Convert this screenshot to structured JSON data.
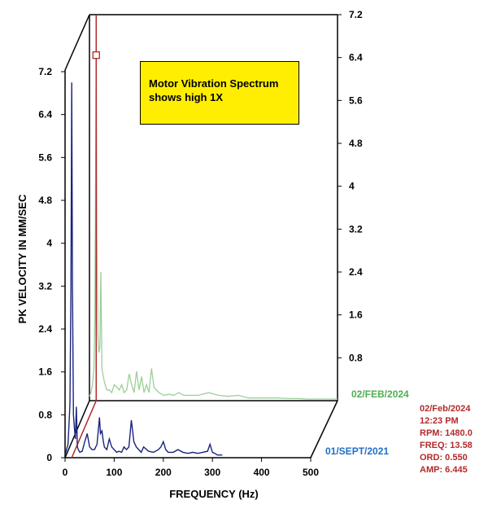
{
  "chart_data": {
    "type": "line",
    "subtype": "waterfall-spectrum",
    "title": "",
    "xlabel": "FREQUENCY (Hz)",
    "ylabel": "PK VELOCITY IN MM/SEC",
    "x_ticks": [
      "0",
      "100",
      "200",
      "300",
      "400",
      "500"
    ],
    "y_ticks_left": [
      "0",
      "0.8",
      "1.6",
      "2.4",
      "3.2",
      "4",
      "4.8",
      "5.6",
      "6.4",
      "7.2"
    ],
    "y_ticks_right": [
      "0.8",
      "1.6",
      "2.4",
      "3.2",
      "4",
      "4.8",
      "5.6",
      "6.4",
      "7.2"
    ],
    "xlim": [
      0,
      500
    ],
    "ylim": [
      0,
      7.2
    ],
    "grid": false,
    "annotation": "Motor Vibration Spectrum\nshows high 1X",
    "series": [
      {
        "name": "01/SEPT/2021",
        "color": "#1a237e",
        "x": [
          0,
          3,
          6,
          8,
          10,
          12,
          13.6,
          15,
          17,
          19,
          21,
          23,
          25,
          27,
          30,
          35,
          40,
          45,
          50,
          55,
          60,
          65,
          68,
          70,
          72,
          75,
          78,
          80,
          85,
          90,
          95,
          100,
          105,
          110,
          115,
          120,
          125,
          130,
          135,
          140,
          145,
          150,
          155,
          160,
          170,
          180,
          190,
          195,
          200,
          205,
          210,
          220,
          230,
          240,
          250,
          260,
          270,
          280,
          290,
          295,
          300,
          305,
          310,
          320
        ],
        "values": [
          0.05,
          0.15,
          0.25,
          0.6,
          1.0,
          3.1,
          7.0,
          3.2,
          0.8,
          0.55,
          0.35,
          0.95,
          0.2,
          0.15,
          0.1,
          0.12,
          0.3,
          0.45,
          0.2,
          0.15,
          0.15,
          0.25,
          0.55,
          0.75,
          0.45,
          0.5,
          0.3,
          0.2,
          0.15,
          0.35,
          0.2,
          0.15,
          0.1,
          0.12,
          0.1,
          0.2,
          0.15,
          0.2,
          0.7,
          0.3,
          0.2,
          0.15,
          0.1,
          0.2,
          0.12,
          0.1,
          0.15,
          0.2,
          0.3,
          0.15,
          0.1,
          0.1,
          0.15,
          0.1,
          0.08,
          0.1,
          0.08,
          0.1,
          0.12,
          0.25,
          0.1,
          0.08,
          0.05,
          0.05
        ]
      },
      {
        "name": "02/FEB/2024",
        "color": "#9ccf9a",
        "x": [
          0,
          3,
          6,
          9,
          11,
          13.58,
          15,
          17,
          19,
          21,
          23,
          25,
          27,
          30,
          35,
          40,
          45,
          50,
          55,
          60,
          65,
          70,
          75,
          80,
          85,
          90,
          95,
          100,
          105,
          110,
          115,
          120,
          125,
          130,
          140,
          150,
          160,
          170,
          180,
          190,
          200,
          220,
          240,
          260,
          280,
          300,
          320,
          340,
          360,
          380,
          400,
          420,
          440,
          460,
          480,
          500
        ],
        "values": [
          0.08,
          0.15,
          0.3,
          0.6,
          1.6,
          6.445,
          3.0,
          1.2,
          0.9,
          1.0,
          2.4,
          0.6,
          0.5,
          0.35,
          0.2,
          0.2,
          0.15,
          0.3,
          0.25,
          0.2,
          0.3,
          0.15,
          0.2,
          0.5,
          0.3,
          0.15,
          0.55,
          0.2,
          0.45,
          0.15,
          0.3,
          0.15,
          0.6,
          0.25,
          0.15,
          0.1,
          0.12,
          0.1,
          0.15,
          0.1,
          0.1,
          0.1,
          0.15,
          0.1,
          0.08,
          0.1,
          0.05,
          0.05,
          0.05,
          0.05,
          0.04,
          0.04,
          0.03,
          0.03,
          0.03,
          0.03
        ]
      }
    ],
    "cursor": {
      "date": "02/Feb/2024",
      "time": "12:23 PM",
      "rpm": "RPM: 1480.0",
      "freq": "FREQ: 13.58",
      "ord": "ORD: 0.550",
      "amp": "AMP: 6.445",
      "freq_value": 13.58,
      "amp_value": 6.445,
      "color": "#b22a2a"
    }
  }
}
